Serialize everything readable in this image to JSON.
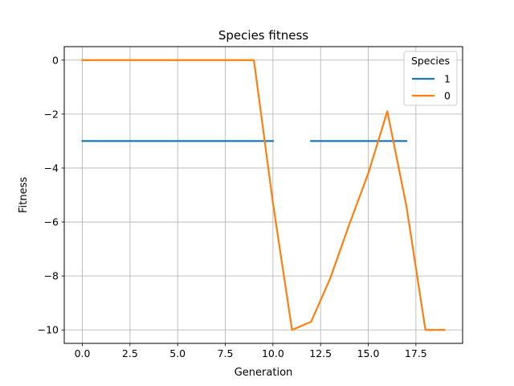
{
  "chart_data": {
    "type": "line",
    "title": "Species fitness",
    "xlabel": "Generation",
    "ylabel": "Fitness",
    "xlim": [
      -0.95,
      19.95
    ],
    "ylim": [
      -10.5,
      0.5
    ],
    "xticks": [
      0,
      2.5,
      5,
      7.5,
      10,
      12.5,
      15,
      17.5
    ],
    "xtick_labels": [
      "0.0",
      "2.5",
      "5.0",
      "7.5",
      "10.0",
      "12.5",
      "15.0",
      "17.5"
    ],
    "yticks": [
      0,
      -2,
      -4,
      -6,
      -8,
      -10
    ],
    "ytick_labels": [
      "0",
      "−2",
      "−4",
      "−6",
      "−8",
      "−10"
    ],
    "grid": true,
    "legend": {
      "title": "Species",
      "placement": "top-right"
    },
    "series": [
      {
        "name": "1",
        "color": "#1f77b4",
        "segments": [
          {
            "x": [
              0,
              10
            ],
            "y": [
              -3,
              -3
            ]
          },
          {
            "x": [
              12,
              17
            ],
            "y": [
              -3,
              -3
            ]
          }
        ]
      },
      {
        "name": "0",
        "color": "#ff7f0e",
        "segments": [
          {
            "x": [
              0,
              1,
              2,
              3,
              4,
              5,
              6,
              7,
              8,
              9,
              10,
              11,
              12,
              13,
              14,
              15,
              16,
              17,
              18,
              19
            ],
            "y": [
              0,
              0,
              0,
              0,
              0,
              0,
              0,
              0,
              0,
              0,
              -5.3,
              -10,
              -9.7,
              -8.1,
              -6.1,
              -4.2,
              -1.9,
              -5.4,
              -10,
              -10
            ]
          }
        ]
      }
    ]
  }
}
